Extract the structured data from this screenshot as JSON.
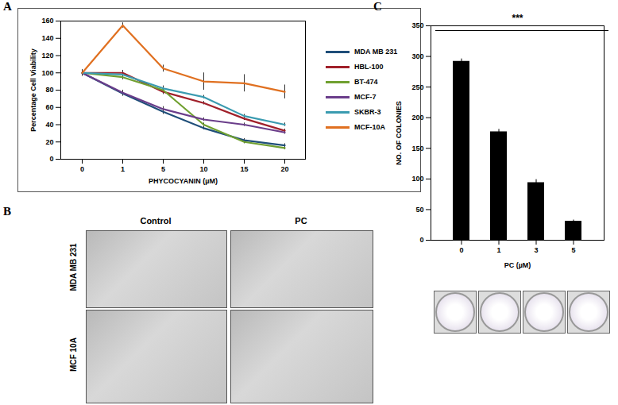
{
  "chart_data": [
    {
      "type": "line",
      "panel": "A",
      "x_label": "PHYCOCYANIN (µM)",
      "y_label": "Percentage Cell Viability",
      "categories": [
        "0",
        "1",
        "5",
        "10",
        "15",
        "20"
      ],
      "ylim": [
        0,
        160
      ],
      "yticks": [
        0,
        20,
        40,
        60,
        80,
        100,
        120,
        140,
        160
      ],
      "legend": "right",
      "series": [
        {
          "name": "MDA MB 231",
          "color": "#1f4e79",
          "values": [
            100,
            76,
            55,
            36,
            22,
            16
          ],
          "errors": [
            3,
            3,
            3,
            2,
            2,
            2
          ]
        },
        {
          "name": "HBL-100",
          "color": "#a0202a",
          "values": [
            100,
            100,
            78,
            65,
            47,
            33
          ],
          "errors": [
            3,
            3,
            3,
            2,
            2,
            2
          ]
        },
        {
          "name": "BT-474",
          "color": "#70a030",
          "values": [
            100,
            95,
            80,
            40,
            20,
            13
          ],
          "errors": [
            3,
            3,
            3,
            2,
            2,
            2
          ]
        },
        {
          "name": "MCF-7",
          "color": "#6a3d8a",
          "values": [
            100,
            77,
            58,
            46,
            40,
            31
          ],
          "errors": [
            3,
            3,
            3,
            2,
            2,
            2
          ]
        },
        {
          "name": "SKBR-3",
          "color": "#3a9bb0",
          "values": [
            100,
            98,
            82,
            72,
            50,
            40
          ],
          "errors": [
            3,
            3,
            3,
            2,
            2,
            2
          ]
        },
        {
          "name": "MCF-10A",
          "color": "#e07020",
          "values": [
            100,
            155,
            105,
            90,
            88,
            78
          ],
          "errors": [
            4,
            3,
            4,
            10,
            10,
            8
          ]
        }
      ]
    },
    {
      "type": "bar",
      "panel": "C",
      "x_label": "PC (µM)",
      "y_label": "NO. OF COLONIES",
      "categories": [
        "0",
        "1",
        "3",
        "5"
      ],
      "values": [
        292,
        177,
        94,
        31
      ],
      "errors": [
        4,
        4,
        5,
        2
      ],
      "color": "#000000",
      "ylim": [
        0,
        350
      ],
      "yticks": [
        0,
        50,
        100,
        150,
        200,
        250,
        300,
        350
      ],
      "annotation": "***"
    }
  ],
  "panel_b": {
    "label": "B",
    "columns": [
      "Control",
      "PC"
    ],
    "rows": [
      "MDA MB 231",
      "MCF 10A"
    ]
  }
}
